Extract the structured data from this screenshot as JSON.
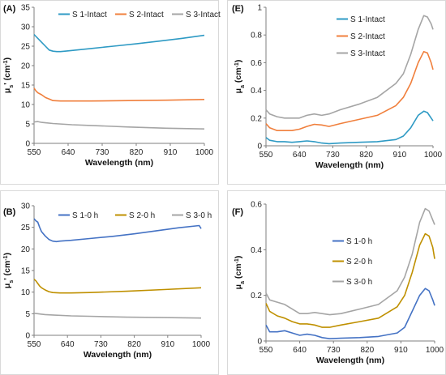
{
  "chart_data": [
    {
      "panel_label": "(A)",
      "type": "line",
      "xlabel": "Wavelength (nm)",
      "ylabel": "μs' (cm-1)",
      "ylabel_main": "μ",
      "ylabel_sub": "s",
      "ylabel_prime": "'",
      "ylabel_unit": "(cm",
      "ylabel_exp": "-1",
      "ylabel_close": ")",
      "xlim": [
        550,
        1000
      ],
      "ylim": [
        0,
        35
      ],
      "xticks": [
        "550",
        "640",
        "730",
        "820",
        "910",
        "1000"
      ],
      "yticks": [
        "0",
        "5",
        "10",
        "15",
        "20",
        "25",
        "30",
        "35"
      ],
      "legend_position": "top",
      "series": [
        {
          "name": "S 1-Intact",
          "color": "#2E9AC4",
          "x": [
            550,
            555,
            560,
            565,
            570,
            580,
            590,
            600,
            610,
            620,
            640,
            700,
            760,
            820,
            880,
            940,
            1000
          ],
          "y": [
            28,
            27.5,
            27,
            26.5,
            26,
            25,
            24,
            23.7,
            23.6,
            23.6,
            23.8,
            24.4,
            25.0,
            25.6,
            26.3,
            27.0,
            27.8
          ]
        },
        {
          "name": "S 2-Intact",
          "color": "#F07F3C",
          "x": [
            550,
            555,
            560,
            570,
            580,
            590,
            600,
            620,
            650,
            700,
            800,
            900,
            1000
          ],
          "y": [
            14.2,
            13.5,
            13.0,
            12.5,
            11.8,
            11.4,
            11.0,
            10.9,
            10.9,
            10.9,
            11.0,
            11.1,
            11.3
          ]
        },
        {
          "name": "S 3-Intact",
          "color": "#A5A5A5",
          "x": [
            550,
            560,
            570,
            580,
            600,
            650,
            700,
            800,
            900,
            1000
          ],
          "y": [
            5.5,
            5.6,
            5.4,
            5.3,
            5.1,
            4.8,
            4.6,
            4.2,
            3.9,
            3.7
          ]
        }
      ]
    },
    {
      "panel_label": "(E)",
      "type": "line",
      "xlabel": "Wavelength (nm)",
      "ylabel": "μa (cm-1)",
      "ylabel_main": "μ",
      "ylabel_sub": "a",
      "ylabel_prime": "",
      "ylabel_unit": "(cm",
      "ylabel_exp": "-1",
      "ylabel_close": ")",
      "xlim": [
        550,
        1000
      ],
      "ylim": [
        0,
        1
      ],
      "xticks": [
        "550",
        "640",
        "730",
        "820",
        "910",
        "1000"
      ],
      "yticks": [
        "0",
        "0.2",
        "0.4",
        "0.6",
        "0.8",
        "1"
      ],
      "legend_position": "left",
      "series": [
        {
          "name": "S 1-Intact",
          "color": "#2E9AC4",
          "x": [
            550,
            560,
            580,
            600,
            620,
            640,
            660,
            680,
            700,
            720,
            750,
            800,
            850,
            900,
            920,
            940,
            960,
            975,
            985,
            995,
            1000
          ],
          "y": [
            0.06,
            0.04,
            0.03,
            0.03,
            0.025,
            0.03,
            0.035,
            0.03,
            0.02,
            0.015,
            0.02,
            0.025,
            0.03,
            0.045,
            0.07,
            0.13,
            0.22,
            0.25,
            0.24,
            0.2,
            0.18
          ]
        },
        {
          "name": "S 2-Intact",
          "color": "#F07F3C",
          "x": [
            550,
            560,
            580,
            600,
            620,
            640,
            660,
            680,
            700,
            720,
            750,
            800,
            850,
            900,
            920,
            940,
            960,
            975,
            985,
            995,
            1000
          ],
          "y": [
            0.16,
            0.13,
            0.11,
            0.11,
            0.11,
            0.12,
            0.14,
            0.155,
            0.15,
            0.14,
            0.16,
            0.19,
            0.22,
            0.29,
            0.35,
            0.45,
            0.6,
            0.68,
            0.67,
            0.6,
            0.55
          ]
        },
        {
          "name": "S 3-Intact",
          "color": "#A5A5A5",
          "x": [
            550,
            560,
            580,
            600,
            620,
            640,
            660,
            680,
            700,
            720,
            750,
            800,
            850,
            900,
            920,
            940,
            960,
            975,
            985,
            995,
            1000
          ],
          "y": [
            0.26,
            0.23,
            0.21,
            0.2,
            0.2,
            0.2,
            0.22,
            0.23,
            0.22,
            0.23,
            0.26,
            0.3,
            0.35,
            0.45,
            0.52,
            0.66,
            0.84,
            0.94,
            0.93,
            0.88,
            0.84
          ]
        }
      ]
    },
    {
      "panel_label": "(B)",
      "type": "line",
      "xlabel": "Wavelength (nm)",
      "ylabel": "μs' (cm-1)",
      "ylabel_main": "μ",
      "ylabel_sub": "s",
      "ylabel_prime": "'",
      "ylabel_unit": "(cm",
      "ylabel_exp": "-1",
      "ylabel_close": ")",
      "xlim": [
        550,
        1000
      ],
      "ylim": [
        0,
        30
      ],
      "xticks": [
        "550",
        "640",
        "730",
        "820",
        "910",
        "1000"
      ],
      "yticks": [
        "0",
        "5",
        "10",
        "15",
        "20",
        "25",
        "30"
      ],
      "legend_position": "top",
      "series": [
        {
          "name": "S 1-0 h",
          "color": "#4472C4",
          "x": [
            550,
            555,
            560,
            565,
            570,
            580,
            590,
            600,
            610,
            620,
            650,
            700,
            760,
            820,
            880,
            940,
            995,
            1000
          ],
          "y": [
            27.0,
            26.5,
            26.2,
            25.0,
            24.0,
            23.0,
            22.2,
            21.8,
            21.7,
            21.8,
            22.0,
            22.4,
            22.9,
            23.5,
            24.2,
            24.9,
            25.4,
            24.7
          ]
        },
        {
          "name": "S 2-0 h",
          "color": "#BF9000",
          "x": [
            550,
            555,
            560,
            565,
            570,
            580,
            590,
            600,
            620,
            650,
            700,
            800,
            900,
            1000
          ],
          "y": [
            13.0,
            12.6,
            12.0,
            11.4,
            11.0,
            10.5,
            10.1,
            9.9,
            9.8,
            9.8,
            9.9,
            10.2,
            10.6,
            11.0
          ]
        },
        {
          "name": "S 3-0 h",
          "color": "#A5A5A5",
          "x": [
            550,
            560,
            570,
            580,
            600,
            650,
            700,
            800,
            900,
            1000
          ],
          "y": [
            5.1,
            5.0,
            4.9,
            4.8,
            4.7,
            4.5,
            4.4,
            4.2,
            4.1,
            4.0
          ]
        }
      ]
    },
    {
      "panel_label": "(F)",
      "type": "line",
      "xlabel": "Wavelength (nm)",
      "ylabel": "μa (cm-1)",
      "ylabel_main": "μ",
      "ylabel_sub": "a",
      "ylabel_prime": "",
      "ylabel_unit": "(cm",
      "ylabel_exp": "-1",
      "ylabel_close": ")",
      "xlim": [
        550,
        1000
      ],
      "ylim": [
        0,
        0.6
      ],
      "xticks": [
        "550",
        "640",
        "730",
        "820",
        "910",
        "1000"
      ],
      "yticks": [
        "0",
        "0.2",
        "0.4",
        "0.6"
      ],
      "legend_position": "right",
      "series": [
        {
          "name": "S 1-0 h",
          "color": "#4472C4",
          "x": [
            550,
            560,
            580,
            600,
            620,
            640,
            660,
            680,
            700,
            720,
            750,
            800,
            850,
            900,
            920,
            940,
            960,
            975,
            985,
            995,
            1000
          ],
          "y": [
            0.07,
            0.04,
            0.04,
            0.045,
            0.035,
            0.025,
            0.03,
            0.025,
            0.015,
            0.01,
            0.012,
            0.015,
            0.02,
            0.035,
            0.06,
            0.13,
            0.2,
            0.23,
            0.22,
            0.18,
            0.155
          ]
        },
        {
          "name": "S 2-0 h",
          "color": "#BF9000",
          "x": [
            550,
            560,
            580,
            600,
            620,
            640,
            660,
            680,
            700,
            720,
            750,
            800,
            850,
            900,
            920,
            940,
            960,
            975,
            985,
            995,
            1000
          ],
          "y": [
            0.165,
            0.13,
            0.11,
            0.1,
            0.085,
            0.075,
            0.075,
            0.07,
            0.06,
            0.06,
            0.07,
            0.085,
            0.1,
            0.15,
            0.2,
            0.3,
            0.42,
            0.47,
            0.46,
            0.41,
            0.36
          ]
        },
        {
          "name": "S 3-0 h",
          "color": "#A5A5A5",
          "x": [
            550,
            560,
            580,
            600,
            620,
            640,
            660,
            680,
            700,
            720,
            750,
            800,
            850,
            900,
            920,
            940,
            960,
            975,
            985,
            995,
            1000
          ],
          "y": [
            0.21,
            0.18,
            0.17,
            0.16,
            0.14,
            0.12,
            0.12,
            0.125,
            0.12,
            0.115,
            0.12,
            0.14,
            0.16,
            0.22,
            0.28,
            0.38,
            0.52,
            0.58,
            0.57,
            0.53,
            0.51
          ]
        }
      ]
    }
  ]
}
